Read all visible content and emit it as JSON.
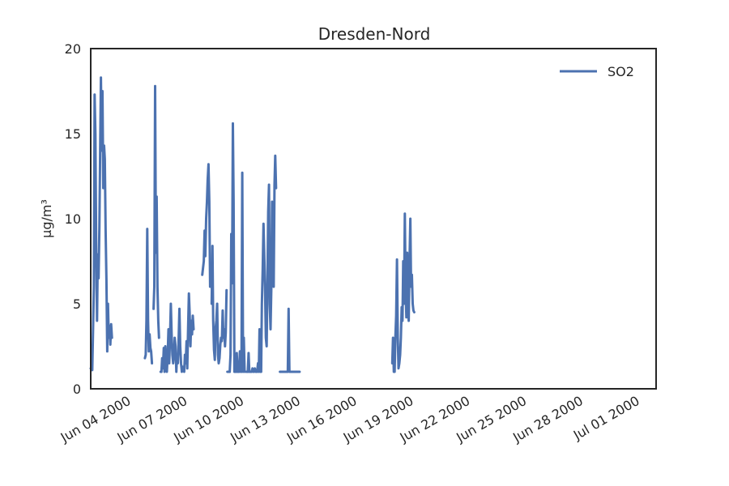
{
  "chart_data": {
    "type": "line",
    "title": "Dresden-Nord",
    "xlabel": "",
    "ylabel": "µg/m³",
    "ylim": [
      0,
      20
    ],
    "xlim": [
      "2000-06-02",
      "2000-07-02"
    ],
    "y_ticks": [
      0,
      5,
      10,
      15,
      20
    ],
    "x_ticks": [
      "Jun 04 2000",
      "Jun 07 2000",
      "Jun 10 2000",
      "Jun 13 2000",
      "Jun 16 2000",
      "Jun 19 2000",
      "Jun 22 2000",
      "Jun 25 2000",
      "Jun 28 2000",
      "Jul 01 2000"
    ],
    "grid": false,
    "legend": {
      "position": "top-right"
    },
    "colors": {
      "SO2": "#4c72b0"
    },
    "series": [
      {
        "name": "SO2",
        "segments": [
          [
            [
              "2000-06-02T00:00",
              1.2
            ],
            [
              "2000-06-02T02:00",
              1.1
            ],
            [
              "2000-06-02T04:00",
              6.0
            ],
            [
              "2000-06-02T05:00",
              17.3
            ],
            [
              "2000-06-02T06:00",
              15.0
            ],
            [
              "2000-06-02T07:00",
              8.0
            ],
            [
              "2000-06-02T08:00",
              4.0
            ],
            [
              "2000-06-02T09:00",
              7.9
            ],
            [
              "2000-06-02T10:00",
              6.5
            ],
            [
              "2000-06-02T11:00",
              9.5
            ],
            [
              "2000-06-02T12:00",
              13.8
            ],
            [
              "2000-06-02T13:00",
              18.3
            ],
            [
              "2000-06-02T14:00",
              14.0
            ],
            [
              "2000-06-02T15:00",
              17.5
            ],
            [
              "2000-06-02T16:00",
              11.8
            ],
            [
              "2000-06-02T17:00",
              14.3
            ],
            [
              "2000-06-02T18:00",
              13.5
            ],
            [
              "2000-06-02T19:00",
              9.3
            ],
            [
              "2000-06-02T20:00",
              6.4
            ],
            [
              "2000-06-02T21:00",
              2.2
            ],
            [
              "2000-06-02T22:00",
              5.0
            ],
            [
              "2000-06-02T23:00",
              3.0
            ],
            [
              "2000-06-03T00:00",
              3.7
            ],
            [
              "2000-06-03T01:00",
              2.6
            ],
            [
              "2000-06-03T02:00",
              3.8
            ],
            [
              "2000-06-03T03:00",
              3.0
            ]
          ],
          [
            [
              "2000-06-04T21:00",
              1.8
            ],
            [
              "2000-06-04T22:00",
              2.0
            ],
            [
              "2000-06-04T23:00",
              4.0
            ],
            [
              "2000-06-05T00:00",
              9.4
            ],
            [
              "2000-06-05T01:00",
              4.0
            ],
            [
              "2000-06-05T02:00",
              2.2
            ],
            [
              "2000-06-05T03:00",
              3.2
            ],
            [
              "2000-06-05T04:00",
              2.4
            ],
            [
              "2000-06-05T05:00",
              2.2
            ],
            [
              "2000-06-05T06:00",
              1.5
            ]
          ],
          [
            [
              "2000-06-05T08:00",
              4.7
            ],
            [
              "2000-06-05T09:00",
              6.0
            ],
            [
              "2000-06-05T10:00",
              17.8
            ],
            [
              "2000-06-05T11:00",
              8.0
            ],
            [
              "2000-06-05T12:00",
              11.3
            ],
            [
              "2000-06-05T13:00",
              6.0
            ],
            [
              "2000-06-05T14:00",
              4.0
            ],
            [
              "2000-06-05T15:00",
              3.0
            ]
          ],
          [
            [
              "2000-06-05T17:00",
              1.0
            ],
            [
              "2000-06-05T18:00",
              1.0
            ],
            [
              "2000-06-05T19:00",
              1.8
            ],
            [
              "2000-06-05T20:00",
              1.2
            ],
            [
              "2000-06-05T21:00",
              2.4
            ],
            [
              "2000-06-05T22:00",
              1.0
            ],
            [
              "2000-06-05T23:00",
              2.5
            ],
            [
              "2000-06-06T00:00",
              1.2
            ],
            [
              "2000-06-06T01:00",
              1.0
            ],
            [
              "2000-06-06T02:00",
              2.0
            ],
            [
              "2000-06-06T03:00",
              3.5
            ],
            [
              "2000-06-06T04:00",
              1.5
            ],
            [
              "2000-06-06T05:00",
              3.0
            ],
            [
              "2000-06-06T06:00",
              5.0
            ],
            [
              "2000-06-06T07:00",
              3.2
            ],
            [
              "2000-06-06T08:00",
              2.0
            ],
            [
              "2000-06-06T09:00",
              1.5
            ],
            [
              "2000-06-06T10:00",
              2.0
            ],
            [
              "2000-06-06T11:00",
              3.0
            ],
            [
              "2000-06-06T12:00",
              2.5
            ],
            [
              "2000-06-06T13:00",
              1.0
            ],
            [
              "2000-06-06T14:00",
              2.0
            ],
            [
              "2000-06-06T15:00",
              1.5
            ],
            [
              "2000-06-06T16:00",
              3.0
            ],
            [
              "2000-06-06T17:00",
              4.7
            ],
            [
              "2000-06-06T18:00",
              2.5
            ],
            [
              "2000-06-06T19:00",
              1.5
            ],
            [
              "2000-06-06T20:00",
              1.0
            ],
            [
              "2000-06-06T21:00",
              1.3
            ],
            [
              "2000-06-06T22:00",
              1.2
            ],
            [
              "2000-06-06T23:00",
              1.0
            ],
            [
              "2000-06-07T00:00",
              2.0
            ],
            [
              "2000-06-07T01:00",
              1.5
            ],
            [
              "2000-06-07T02:00",
              2.8
            ],
            [
              "2000-06-07T03:00",
              1.2
            ],
            [
              "2000-06-07T04:00",
              3.5
            ],
            [
              "2000-06-07T05:00",
              5.6
            ],
            [
              "2000-06-07T06:00",
              4.5
            ],
            [
              "2000-06-07T07:00",
              2.5
            ],
            [
              "2000-06-07T08:00",
              4.0
            ],
            [
              "2000-06-07T09:00",
              3.2
            ],
            [
              "2000-06-07T10:00",
              4.3
            ],
            [
              "2000-06-07T11:00",
              3.5
            ]
          ],
          [
            [
              "2000-06-07T22:00",
              6.7
            ],
            [
              "2000-06-08T00:00",
              7.5
            ],
            [
              "2000-06-08T01:00",
              9.3
            ],
            [
              "2000-06-08T02:00",
              7.8
            ],
            [
              "2000-06-08T03:00",
              10.0
            ],
            [
              "2000-06-08T04:00",
              11.0
            ],
            [
              "2000-06-08T05:00",
              12.3
            ],
            [
              "2000-06-08T06:00",
              13.2
            ],
            [
              "2000-06-08T07:00",
              11.0
            ],
            [
              "2000-06-08T08:00",
              6.0
            ]
          ],
          [
            [
              "2000-06-08T10:00",
              5.0
            ],
            [
              "2000-06-08T11:00",
              8.4
            ],
            [
              "2000-06-08T12:00",
              4.0
            ],
            [
              "2000-06-08T13:00",
              2.3
            ],
            [
              "2000-06-08T14:00",
              1.7
            ],
            [
              "2000-06-08T15:00",
              3.5
            ],
            [
              "2000-06-08T16:00",
              4.0
            ],
            [
              "2000-06-08T17:00",
              5.0
            ],
            [
              "2000-06-08T18:00",
              2.0
            ],
            [
              "2000-06-08T19:00",
              1.5
            ],
            [
              "2000-06-08T20:00",
              1.8
            ],
            [
              "2000-06-08T21:00",
              2.6
            ],
            [
              "2000-06-08T22:00",
              3.0
            ],
            [
              "2000-06-08T23:00",
              2.8
            ],
            [
              "2000-06-09T00:00",
              4.6
            ],
            [
              "2000-06-09T01:00",
              3.0
            ],
            [
              "2000-06-09T02:00",
              3.5
            ],
            [
              "2000-06-09T03:00",
              2.5
            ],
            [
              "2000-06-09T04:00",
              3.3
            ],
            [
              "2000-06-09T05:00",
              5.8
            ]
          ],
          [
            [
              "2000-06-09T06:00",
              1.0
            ],
            [
              "2000-06-09T08:00",
              1.0
            ],
            [
              "2000-06-09T09:00",
              1.0
            ],
            [
              "2000-06-09T10:00",
              2.0
            ],
            [
              "2000-06-09T11:00",
              9.1
            ],
            [
              "2000-06-09T12:00",
              6.2
            ],
            [
              "2000-06-09T13:00",
              15.6
            ],
            [
              "2000-06-09T14:00",
              11.0
            ],
            [
              "2000-06-09T15:00",
              1.0
            ],
            [
              "2000-06-09T16:00",
              1.0
            ],
            [
              "2000-06-09T17:00",
              1.0
            ],
            [
              "2000-06-09T18:00",
              2.1
            ],
            [
              "2000-06-09T19:00",
              1.0
            ],
            [
              "2000-06-09T20:00",
              1.0
            ],
            [
              "2000-06-09T21:00",
              1.0
            ],
            [
              "2000-06-09T22:00",
              2.2
            ],
            [
              "2000-06-09T23:00",
              1.0
            ],
            [
              "2000-06-10T00:00",
              1.0
            ],
            [
              "2000-06-10T01:00",
              12.7
            ],
            [
              "2000-06-10T02:00",
              1.0
            ],
            [
              "2000-06-10T03:00",
              3.0
            ],
            [
              "2000-06-10T04:00",
              1.0
            ]
          ],
          [
            [
              "2000-06-10T06:00",
              1.0
            ],
            [
              "2000-06-10T08:00",
              1.0
            ],
            [
              "2000-06-10T09:00",
              2.1
            ],
            [
              "2000-06-10T10:00",
              1.0
            ],
            [
              "2000-06-10T12:00",
              1.0
            ],
            [
              "2000-06-10T13:00",
              1.0
            ],
            [
              "2000-06-10T14:00",
              1.2
            ],
            [
              "2000-06-10T15:00",
              1.0
            ],
            [
              "2000-06-10T16:00",
              1.0
            ],
            [
              "2000-06-10T17:00",
              1.2
            ],
            [
              "2000-06-10T18:00",
              1.0
            ],
            [
              "2000-06-10T20:00",
              1.0
            ],
            [
              "2000-06-10T21:00",
              1.5
            ],
            [
              "2000-06-10T22:00",
              1.0
            ],
            [
              "2000-06-10T23:00",
              3.5
            ],
            [
              "2000-06-11T00:00",
              1.0
            ],
            [
              "2000-06-11T01:00",
              1.0
            ],
            [
              "2000-06-11T02:00",
              5.0
            ],
            [
              "2000-06-11T03:00",
              7.0
            ],
            [
              "2000-06-11T04:00",
              9.7
            ],
            [
              "2000-06-11T05:00",
              8.0
            ],
            [
              "2000-06-11T06:00",
              6.0
            ],
            [
              "2000-06-11T07:00",
              3.0
            ],
            [
              "2000-06-11T08:00",
              2.5
            ],
            [
              "2000-06-11T09:00",
              6.0
            ],
            [
              "2000-06-11T10:00",
              10.4
            ],
            [
              "2000-06-11T11:00",
              12.0
            ],
            [
              "2000-06-11T12:00",
              5.0
            ],
            [
              "2000-06-11T13:00",
              3.5
            ],
            [
              "2000-06-11T14:00",
              6.0
            ],
            [
              "2000-06-11T15:00",
              11.0
            ],
            [
              "2000-06-11T16:00",
              9.0
            ],
            [
              "2000-06-11T17:00",
              6.0
            ],
            [
              "2000-06-11T18:00",
              12.0
            ],
            [
              "2000-06-11T19:00",
              13.7
            ],
            [
              "2000-06-11T20:00",
              11.8
            ]
          ],
          [
            [
              "2000-06-12T01:00",
              1.0
            ],
            [
              "2000-06-12T04:00",
              1.0
            ],
            [
              "2000-06-12T07:00",
              1.0
            ],
            [
              "2000-06-12T09:00",
              1.0
            ],
            [
              "2000-06-12T10:00",
              1.0
            ],
            [
              "2000-06-12T11:00",
              1.0
            ],
            [
              "2000-06-12T12:00",
              4.7
            ],
            [
              "2000-06-12T13:00",
              1.0
            ],
            [
              "2000-06-12T16:00",
              1.0
            ],
            [
              "2000-06-12T20:00",
              1.0
            ],
            [
              "2000-06-13T00:00",
              1.0
            ],
            [
              "2000-06-13T02:00",
              1.0
            ]
          ],
          [
            [
              "2000-06-18T00:00",
              1.5
            ],
            [
              "2000-06-18T01:00",
              3.0
            ],
            [
              "2000-06-18T02:00",
              1.0
            ],
            [
              "2000-06-18T03:00",
              1.0
            ],
            [
              "2000-06-18T04:00",
              3.0
            ],
            [
              "2000-06-18T05:00",
              4.3
            ],
            [
              "2000-06-18T06:00",
              7.6
            ],
            [
              "2000-06-18T07:00",
              3.0
            ],
            [
              "2000-06-18T08:00",
              1.2
            ],
            [
              "2000-06-18T09:00",
              1.5
            ],
            [
              "2000-06-18T10:00",
              2.0
            ],
            [
              "2000-06-18T11:00",
              3.0
            ],
            [
              "2000-06-18T12:00",
              4.8
            ],
            [
              "2000-06-18T13:00",
              4.0
            ],
            [
              "2000-06-18T14:00",
              7.5
            ],
            [
              "2000-06-18T15:00",
              5.0
            ],
            [
              "2000-06-18T16:00",
              10.3
            ],
            [
              "2000-06-18T17:00",
              6.0
            ],
            [
              "2000-06-18T18:00",
              4.2
            ],
            [
              "2000-06-18T19:00",
              8.0
            ],
            [
              "2000-06-18T20:00",
              5.0
            ],
            [
              "2000-06-18T21:00",
              4.0
            ],
            [
              "2000-06-18T22:00",
              7.5
            ],
            [
              "2000-06-18T23:00",
              10.0
            ],
            [
              "2000-06-19T00:00",
              6.0
            ],
            [
              "2000-06-19T01:00",
              6.7
            ],
            [
              "2000-06-19T02:00",
              5.0
            ],
            [
              "2000-06-19T03:00",
              4.6
            ],
            [
              "2000-06-19T04:00",
              4.5
            ]
          ]
        ]
      }
    ]
  }
}
